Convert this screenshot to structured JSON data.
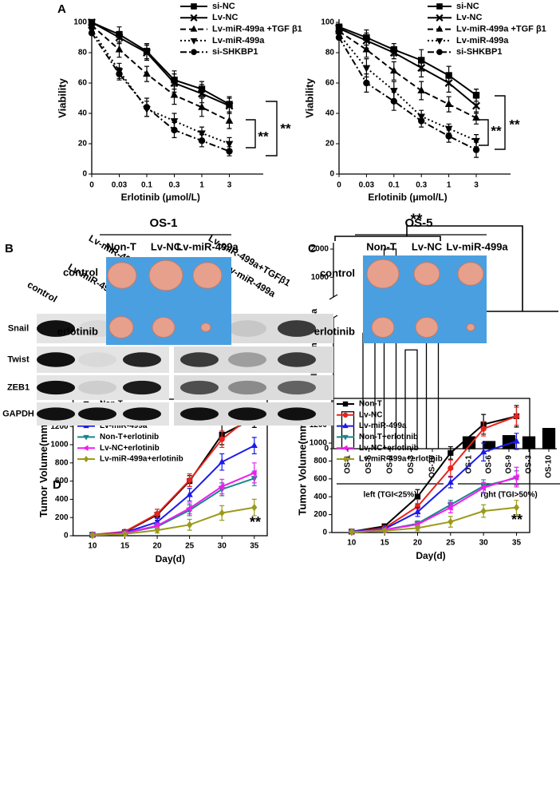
{
  "panel_labels": [
    "A",
    "B",
    "C",
    "D"
  ],
  "chart_data": [
    {
      "type": "line",
      "categories": [
        "0",
        "0.03",
        "0.1",
        "0.3",
        "1",
        "3"
      ],
      "xlabel": "Erlotinib (μmol/L)",
      "ylabel": "Viability",
      "ylim": [
        0,
        100
      ],
      "yticks": [
        0,
        20,
        40,
        60,
        80,
        100
      ],
      "annotations": [
        "**",
        "**"
      ],
      "series": [
        {
          "name": "si-NC",
          "color": "#000000",
          "marker": "square",
          "dash": "solid",
          "values": [
            100,
            92,
            81,
            62,
            56,
            46
          ],
          "errors": [
            0,
            5,
            5,
            6,
            5,
            5
          ]
        },
        {
          "name": "Lv-NC",
          "color": "#000000",
          "marker": "x",
          "dash": "solid",
          "values": [
            100,
            90,
            80,
            60,
            53,
            45
          ],
          "errors": [
            0,
            4,
            5,
            6,
            6,
            5
          ]
        },
        {
          "name": "Lv-miR-499a +TGF β1",
          "color": "#000000",
          "marker": "triangle",
          "dash": "dash",
          "values": [
            98,
            82,
            66,
            52,
            44,
            35
          ],
          "errors": [
            0,
            5,
            5,
            6,
            6,
            5
          ]
        },
        {
          "name": "Lv-miR-499a",
          "color": "#000000",
          "marker": "triangle-down",
          "dash": "dot",
          "values": [
            95,
            68,
            43,
            35,
            27,
            20
          ],
          "errors": [
            0,
            5,
            5,
            5,
            4,
            4
          ]
        },
        {
          "name": "si-SHKBP1",
          "color": "#000000",
          "marker": "circle",
          "dash": "dashdot",
          "values": [
            93,
            66,
            44,
            29,
            22,
            15
          ],
          "errors": [
            0,
            4,
            6,
            5,
            4,
            3
          ]
        }
      ]
    },
    {
      "type": "line",
      "categories": [
        "0",
        "0.03",
        "0.1",
        "0.3",
        "1",
        "3"
      ],
      "xlabel": "Erlotinib (μmol/L)",
      "ylabel": "Viability",
      "ylim": [
        0,
        100
      ],
      "yticks": [
        0,
        20,
        40,
        60,
        80,
        100
      ],
      "annotations": [
        "**",
        "**"
      ],
      "series": [
        {
          "name": "si-NC",
          "color": "#000000",
          "marker": "square",
          "dash": "solid",
          "values": [
            97,
            90,
            82,
            75,
            65,
            52
          ],
          "errors": [
            0,
            5,
            4,
            7,
            6,
            4
          ]
        },
        {
          "name": "Lv-NC",
          "color": "#000000",
          "marker": "x",
          "dash": "solid",
          "values": [
            96,
            88,
            80,
            70,
            60,
            45
          ],
          "errors": [
            0,
            5,
            4,
            6,
            6,
            5
          ]
        },
        {
          "name": "Lv-miR-499a +TGF β1",
          "color": "#000000",
          "marker": "triangle",
          "dash": "dash",
          "values": [
            94,
            82,
            68,
            55,
            46,
            37
          ],
          "errors": [
            0,
            5,
            6,
            6,
            5,
            4
          ]
        },
        {
          "name": "Lv-miR-499a",
          "color": "#000000",
          "marker": "triangle-down",
          "dash": "dot",
          "values": [
            92,
            70,
            55,
            38,
            30,
            22
          ],
          "errors": [
            0,
            6,
            6,
            4,
            3,
            4
          ]
        },
        {
          "name": "si-SHKBP1",
          "color": "#000000",
          "marker": "circle",
          "dash": "dashdot",
          "values": [
            90,
            60,
            48,
            35,
            25,
            16
          ],
          "errors": [
            0,
            6,
            6,
            4,
            4,
            5
          ]
        }
      ]
    },
    {
      "type": "bar",
      "ylabel": "SHKBP1/miR-499a",
      "ylim": [
        0,
        2000
      ],
      "ybreak": [
        110,
        300
      ],
      "yticks": [
        0,
        25,
        50,
        75,
        100,
        1000,
        2000
      ],
      "annotation": "**",
      "groups": [
        {
          "label": "left (TGI<25%)",
          "color": "#ffffff",
          "categories": [
            "OS-1",
            "OS-6",
            "OS-9",
            "OS-3",
            "OS-10"
          ],
          "values": [
            31,
            97,
            2000,
            83,
            1400
          ]
        },
        {
          "label": "rght (TGI>50%)",
          "color": "#000000",
          "categories": [
            "OS-1",
            "OS-6",
            "OS-9",
            "OS-3",
            "OS-10"
          ],
          "values": [
            10,
            6,
            11,
            10,
            17
          ]
        }
      ]
    },
    {
      "type": "line",
      "x": [
        10,
        15,
        20,
        25,
        30,
        35
      ],
      "xlim": [
        7,
        37
      ],
      "xticks": [
        10,
        15,
        20,
        25,
        30,
        35
      ],
      "ylim": [
        0,
        1500
      ],
      "yticks": [
        0,
        200,
        400,
        600,
        800,
        1000,
        1200,
        1400
      ],
      "xlabel": "Day(d)",
      "ylabel": "Tumor Volume(mm³)",
      "annotations": [
        "**"
      ],
      "series": [
        {
          "name": "Non-T",
          "color": "#000000",
          "marker": "square",
          "dash": "solid",
          "values": [
            10,
            40,
            230,
            600,
            1110,
            1290
          ],
          "errors": [
            10,
            15,
            60,
            60,
            110,
            100
          ]
        },
        {
          "name": "Lv-NC",
          "color": "#e8231a",
          "marker": "circle",
          "dash": "solid",
          "values": [
            10,
            45,
            240,
            610,
            1060,
            1340
          ],
          "errors": [
            10,
            15,
            50,
            70,
            90,
            100
          ]
        },
        {
          "name": "Lv-miR-499a",
          "color": "#1a1aeb",
          "marker": "triangle",
          "dash": "solid",
          "values": [
            10,
            35,
            150,
            450,
            810,
            990
          ],
          "errors": [
            10,
            10,
            40,
            70,
            90,
            90
          ]
        },
        {
          "name": "Non-T+erlotinib",
          "color": "#18868a",
          "marker": "triangle-down",
          "dash": "solid",
          "values": [
            10,
            30,
            100,
            280,
            510,
            630
          ],
          "errors": [
            5,
            10,
            30,
            60,
            70,
            80
          ]
        },
        {
          "name": "Lv-NC+erlotinib",
          "color": "#f01cf0",
          "marker": "triangle-left",
          "dash": "solid",
          "values": [
            10,
            30,
            110,
            300,
            540,
            690
          ],
          "errors": [
            5,
            10,
            30,
            60,
            80,
            110
          ]
        },
        {
          "name": "Lv-miR-499a+erlotinib",
          "color": "#9a9a1a",
          "marker": "diamond",
          "dash": "solid",
          "values": [
            5,
            20,
            60,
            120,
            250,
            310
          ],
          "errors": [
            5,
            10,
            30,
            60,
            80,
            90
          ]
        }
      ]
    },
    {
      "type": "line",
      "x": [
        10,
        15,
        20,
        25,
        30,
        35
      ],
      "xlim": [
        7,
        37
      ],
      "xticks": [
        10,
        15,
        20,
        25,
        30,
        35
      ],
      "ylim": [
        0,
        1500
      ],
      "yticks": [
        0,
        200,
        400,
        600,
        800,
        1000,
        1200,
        1400
      ],
      "xlabel": "Day(d)",
      "ylabel": "Tumor Volume(mm³)",
      "annotations": [
        "**"
      ],
      "series": [
        {
          "name": "Non-T",
          "color": "#000000",
          "marker": "square",
          "dash": "solid",
          "values": [
            10,
            70,
            400,
            890,
            1210,
            1300
          ],
          "errors": [
            10,
            15,
            80,
            70,
            110,
            120
          ]
        },
        {
          "name": "Lv-NC",
          "color": "#e8231a",
          "marker": "circle",
          "dash": "solid",
          "values": [
            10,
            50,
            290,
            720,
            1160,
            1300
          ],
          "errors": [
            10,
            15,
            80,
            90,
            80,
            100
          ]
        },
        {
          "name": "Lv-miR-499a",
          "color": "#1a1aeb",
          "marker": "triangle",
          "dash": "solid",
          "values": [
            10,
            40,
            230,
            560,
            900,
            1020
          ],
          "errors": [
            10,
            10,
            50,
            60,
            100,
            90
          ]
        },
        {
          "name": "Non-T+erlotinib",
          "color": "#18868a",
          "marker": "triangle-down",
          "dash": "solid",
          "values": [
            5,
            30,
            100,
            310,
            520,
            610
          ],
          "errors": [
            5,
            10,
            30,
            50,
            70,
            80
          ]
        },
        {
          "name": "Lv-NC+erlotinib",
          "color": "#f01cf0",
          "marker": "triangle-left",
          "dash": "solid",
          "values": [
            5,
            30,
            90,
            280,
            500,
            620
          ],
          "errors": [
            5,
            10,
            30,
            60,
            60,
            110
          ]
        },
        {
          "name": "Lv-miR-499a+erlotinib",
          "color": "#9a9a1a",
          "marker": "diamond",
          "dash": "solid",
          "values": [
            5,
            20,
            50,
            120,
            240,
            280
          ],
          "errors": [
            5,
            10,
            30,
            60,
            70,
            80
          ]
        }
      ]
    }
  ],
  "blot": {
    "rows": [
      "Snail",
      "Twist",
      "ZEB1",
      "GAPDH"
    ],
    "panels": [
      {
        "lanes": [
          "control",
          "Lv-miR-499a",
          "Lv-miR-499a+TGFβ1"
        ]
      },
      {
        "lanes": [
          "control",
          "Lv-miR-499a",
          "Lv-miR-499a+TGFβ1"
        ]
      }
    ]
  },
  "xenograft": [
    {
      "title": "OS-1",
      "columns": [
        "Non-T",
        "Lv-NC",
        "Lv-miR-499a"
      ],
      "rows": [
        "control",
        "erlotinib"
      ]
    },
    {
      "title": "OS-5",
      "columns": [
        "Non-T",
        "Lv-NC",
        "Lv-miR-499a"
      ],
      "rows": [
        "control",
        "erlotinib"
      ]
    }
  ]
}
